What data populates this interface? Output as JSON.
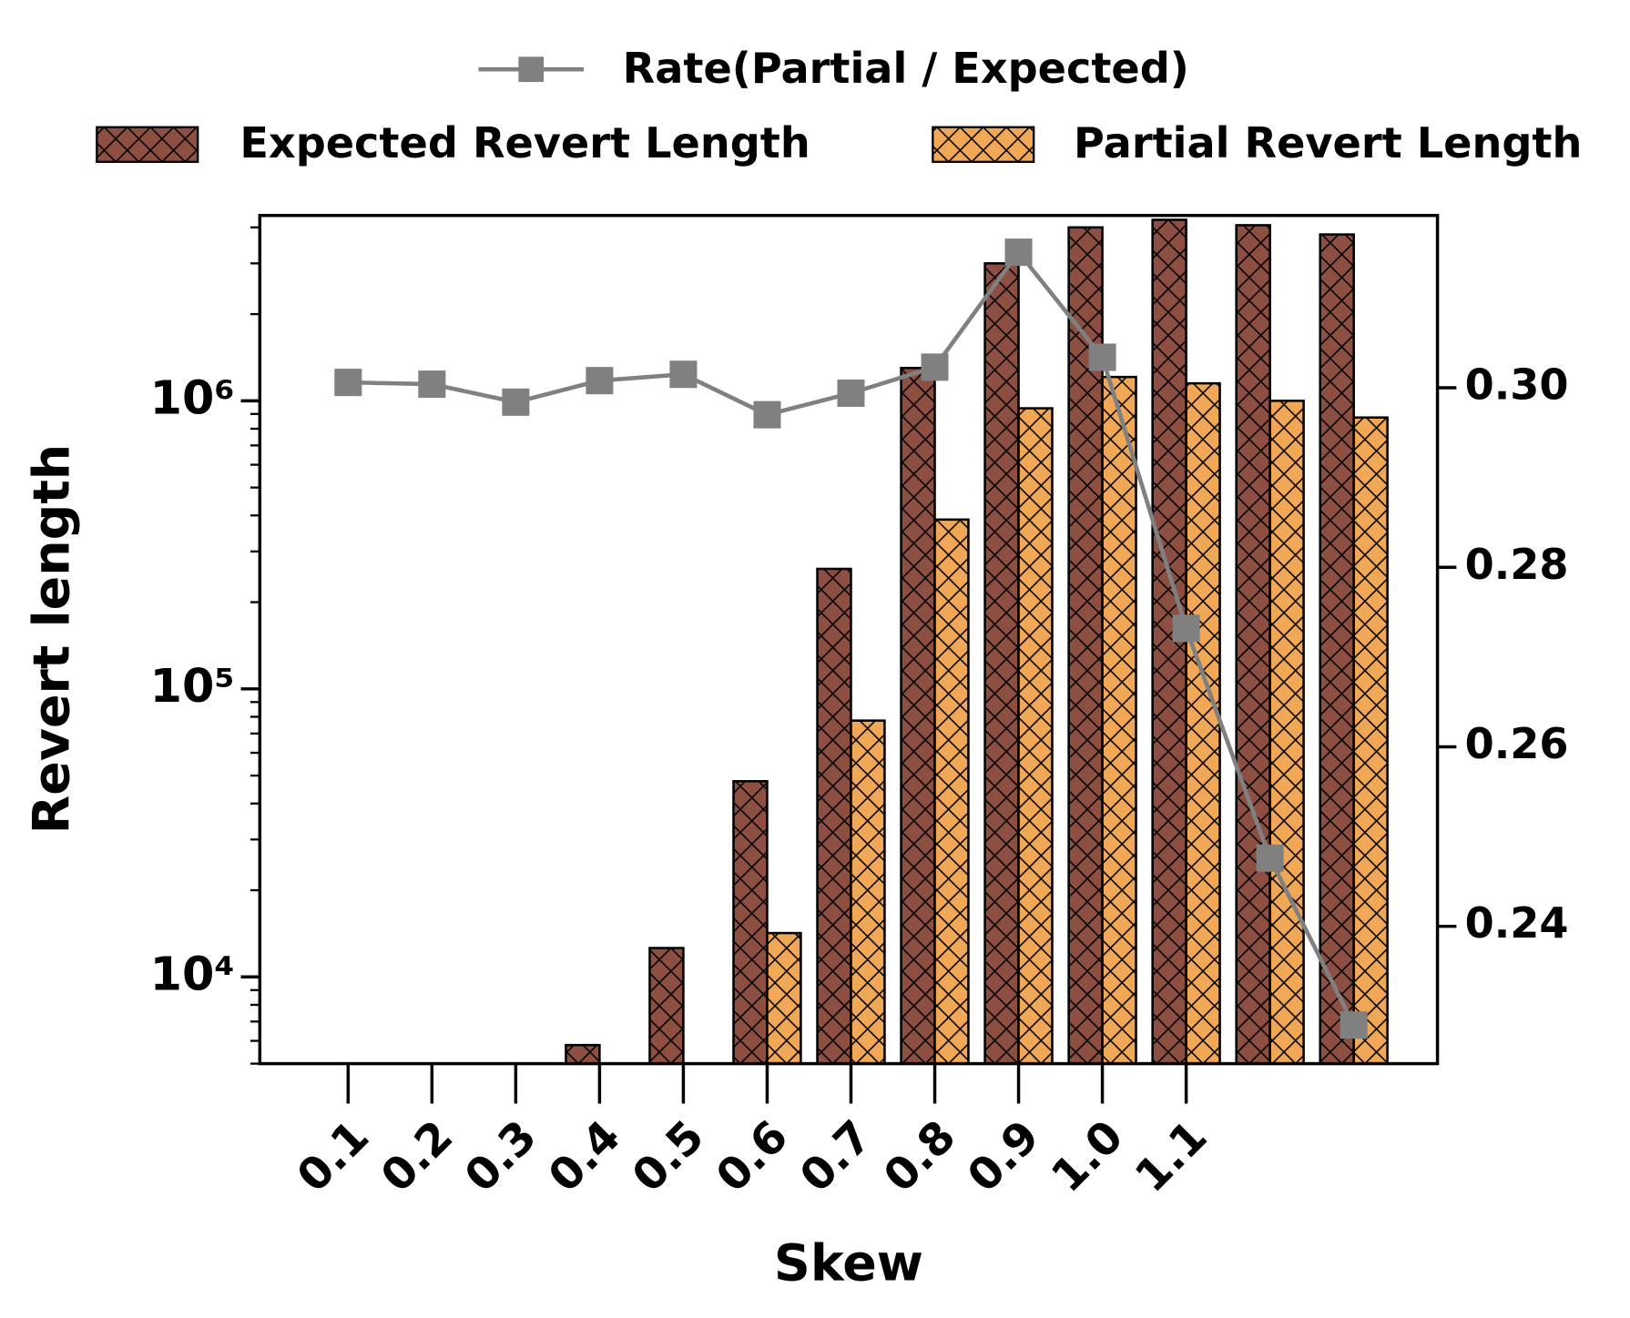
{
  "chart_data": {
    "type": "bar",
    "x_label": "Skew",
    "y_label": "Revert length",
    "categories": [
      "0.1",
      "0.2",
      "0.3",
      "0.4",
      "0.5",
      "0.6",
      "0.7",
      "0.8",
      "0.9",
      "1.0",
      "1.1",
      null,
      null
    ],
    "log_scale": true,
    "ylim": [
      5000,
      4400000
    ],
    "yticks": [
      {
        "value": 10000,
        "label": "10⁴"
      },
      {
        "value": 100000,
        "label": "10⁵"
      },
      {
        "value": 1000000,
        "label": "10⁶"
      }
    ],
    "yminorticks": [
      5000,
      6000,
      7000,
      8000,
      9000,
      20000,
      30000,
      40000,
      50000,
      60000,
      70000,
      80000,
      90000,
      200000,
      300000,
      400000,
      500000,
      600000,
      700000,
      800000,
      900000,
      2000000,
      3000000,
      4000000
    ],
    "y2lim": [
      0.2247,
      0.3192
    ],
    "y2ticks": [
      {
        "value": 0.24,
        "label": "0.24"
      },
      {
        "value": 0.26,
        "label": "0.26"
      },
      {
        "value": 0.28,
        "label": "0.28"
      },
      {
        "value": 0.3,
        "label": "0.30"
      }
    ],
    "series": [
      {
        "name": "Expected Revert Length",
        "type": "bar",
        "color": "#8c4f41",
        "hatch": "x",
        "values": [
          null,
          null,
          null,
          5800,
          12600,
          47800,
          261000,
          1300000,
          3000000,
          4000000,
          4250000,
          4070000,
          3780000
        ]
      },
      {
        "name": "Partial Revert Length",
        "type": "bar",
        "color": "#f0a857",
        "hatch": "x",
        "values": [
          null,
          null,
          null,
          null,
          null,
          14200,
          77600,
          387000,
          942000,
          1210000,
          1150000,
          1000000,
          875000
        ]
      },
      {
        "name": "Rate(Partial / Expected)",
        "type": "line",
        "axis": "y2",
        "color": "#808080",
        "marker": "square",
        "values": [
          0.3006,
          0.3004,
          0.2984,
          0.3008,
          0.3015,
          0.297,
          0.2994,
          0.3023,
          0.3151,
          0.3034,
          0.2732,
          0.2476,
          0.229
        ]
      }
    ]
  }
}
